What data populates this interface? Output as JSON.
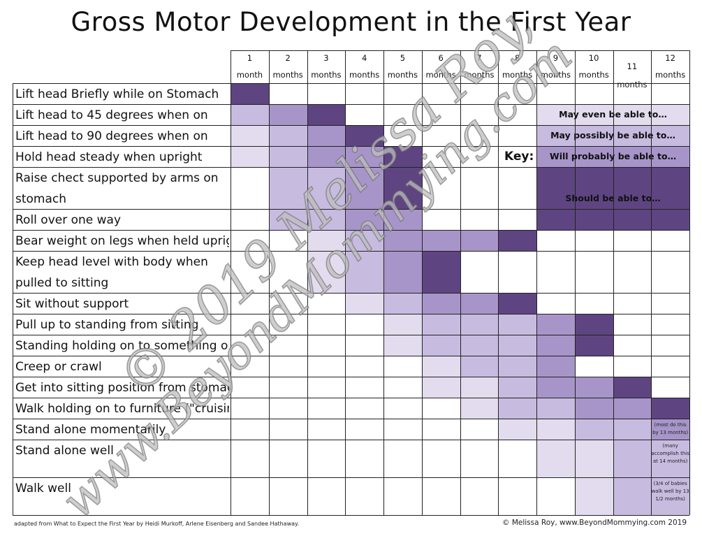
{
  "title": "Gross Motor Development in the First Year",
  "months": [
    {
      "num": "1",
      "unit": "month"
    },
    {
      "num": "2",
      "unit": "months"
    },
    {
      "num": "3",
      "unit": "months"
    },
    {
      "num": "4",
      "unit": "months"
    },
    {
      "num": "5",
      "unit": "months"
    },
    {
      "num": "6",
      "unit": "months"
    },
    {
      "num": "7",
      "unit": "months"
    },
    {
      "num": "8",
      "unit": "months"
    },
    {
      "num": "9",
      "unit": "months"
    },
    {
      "num": "10",
      "unit": "months"
    },
    {
      "num": "11 months",
      "unit": ""
    },
    {
      "num": "12",
      "unit": "months"
    }
  ],
  "shades": {
    "0": "#ffffff",
    "1": "#e3dcee",
    "2": "#c8bbe0",
    "3": "#a795c9",
    "4": "#5e4582"
  },
  "milestones": [
    {
      "label": "Lift head Briefly while on Stomach",
      "levels": [
        4,
        0,
        0,
        0,
        0,
        0,
        0,
        0,
        0,
        0,
        0,
        0
      ]
    },
    {
      "label": "Lift head to 45 degrees when on",
      "levels": [
        2,
        3,
        4,
        0,
        0,
        0,
        0,
        0,
        0,
        0,
        0,
        0
      ]
    },
    {
      "label": "Lift head to 90 degrees when on",
      "levels": [
        1,
        2,
        3,
        4,
        0,
        0,
        0,
        0,
        0,
        0,
        0,
        0
      ]
    },
    {
      "label": "Hold head steady when upright",
      "levels": [
        1,
        2,
        3,
        3,
        4,
        0,
        0,
        0,
        0,
        0,
        0,
        0
      ]
    },
    {
      "label": "Raise chect supported by arms on",
      "label2": "stomach",
      "levels": [
        0,
        2,
        2,
        3,
        4,
        0,
        0,
        0,
        0,
        0,
        0,
        0
      ]
    },
    {
      "label": "Roll over one way",
      "levels": [
        0,
        2,
        2,
        3,
        3,
        0,
        0,
        0,
        0,
        0,
        0,
        0
      ]
    },
    {
      "label": "Bear weight on legs when held upright",
      "levels": [
        0,
        0,
        1,
        2,
        3,
        3,
        3,
        4,
        0,
        0,
        0,
        0
      ]
    },
    {
      "label": "Keep head level with body when",
      "label2": "pulled to sitting",
      "levels": [
        0,
        0,
        1,
        2,
        3,
        4,
        0,
        0,
        0,
        0,
        0,
        0
      ]
    },
    {
      "label": "Sit without support",
      "levels": [
        0,
        0,
        0,
        1,
        2,
        3,
        3,
        4,
        0,
        0,
        0,
        0
      ]
    },
    {
      "label": "Pull up to standing from sitting",
      "levels": [
        0,
        0,
        0,
        0,
        1,
        2,
        2,
        2,
        3,
        4,
        0,
        0
      ]
    },
    {
      "label": "Standing holding on to something or",
      "levels": [
        0,
        0,
        0,
        0,
        1,
        2,
        2,
        2,
        3,
        4,
        0,
        0
      ]
    },
    {
      "label": "Creep or crawl",
      "levels": [
        0,
        0,
        0,
        0,
        0,
        1,
        2,
        2,
        3,
        0,
        0,
        0
      ]
    },
    {
      "label": "Get into sitting position from stomach",
      "levels": [
        0,
        0,
        0,
        0,
        0,
        1,
        1,
        2,
        3,
        3,
        4,
        0
      ]
    },
    {
      "label": "Walk holding on to furniture (\"cruising\")",
      "levels": [
        0,
        0,
        0,
        0,
        0,
        0,
        1,
        2,
        2,
        3,
        3,
        4
      ]
    },
    {
      "label": "Stand alone momentarily",
      "levels": [
        0,
        0,
        0,
        0,
        0,
        0,
        0,
        1,
        1,
        2,
        2,
        3
      ]
    },
    {
      "label": "Stand alone well",
      "levels": [
        0,
        0,
        0,
        0,
        0,
        0,
        0,
        0,
        1,
        1,
        2,
        2
      ]
    },
    {
      "label": "Walk well",
      "levels": [
        0,
        0,
        0,
        0,
        0,
        0,
        0,
        0,
        0,
        1,
        2,
        2
      ]
    }
  ],
  "key": {
    "label": "Key:",
    "items": [
      {
        "text": "May even be able to…",
        "shade": "1"
      },
      {
        "text": "May possibly be able to…",
        "shade": "2"
      },
      {
        "text": "Will probably be able to…",
        "shade": "3"
      },
      {
        "text": "Should be able to…",
        "shade": "4"
      }
    ]
  },
  "notes": [
    {
      "row": 14,
      "lines": [
        "(most do this",
        "by 13 months)"
      ]
    },
    {
      "row": 15,
      "lines": [
        "(many",
        "accomplish this",
        "at 14 months)"
      ]
    },
    {
      "row": 16,
      "lines": [
        "(3/4 of babies",
        "walk well by 13",
        "1/2 months)"
      ]
    }
  ],
  "footer": {
    "left": "adapted from What to Expect the First Year by Heidi Murkoff, Arlene Eisenberg and Sandee Hathaway.",
    "right": "© Melissa Roy, www.BeyondMommying.com 2019"
  },
  "watermark": {
    "line1": "© 2019 Melissa Roy,",
    "line2": "www.BeyondMommying.com"
  }
}
